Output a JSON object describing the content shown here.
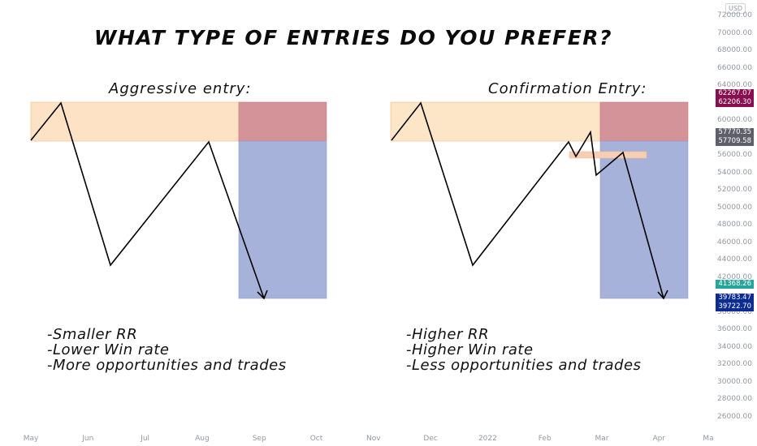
{
  "chart_data": {
    "type": "line",
    "title": "WHAT TYPE OF ENTRIES DO YOU PREFER?",
    "currency": "USD",
    "panels": [
      {
        "subtitle": "Aggressive entry:",
        "notes": [
          "-Smaller RR",
          "-Lower Win rate",
          "-More opportunities and trades"
        ]
      },
      {
        "subtitle": "Confirmation Entry:",
        "notes": [
          "-Higher RR",
          "-Higher Win rate",
          "-Less opportunities and trades"
        ]
      }
    ],
    "y_ticks": [
      "72000.00",
      "70000.00",
      "68000.00",
      "66000.00",
      "64000.00",
      "60000.00",
      "56000.00",
      "54000.00",
      "52000.00",
      "50000.00",
      "48000.00",
      "46000.00",
      "44000.00",
      "42000.00",
      "38000.00",
      "36000.00",
      "34000.00",
      "32000.00",
      "30000.00",
      "28000.00",
      "26000.00"
    ],
    "x_ticks": [
      "May",
      "Jun",
      "Jul",
      "Aug",
      "Sep",
      "Oct",
      "Nov",
      "Dec",
      "2022",
      "Feb",
      "Mar",
      "Apr",
      "Ma"
    ],
    "price_labels": [
      {
        "value": "62267.07",
        "color": "#880e4f"
      },
      {
        "value": "62206.30",
        "color": "#880e4f"
      },
      {
        "value": "57770.35",
        "color": "#5d606b"
      },
      {
        "value": "57709.58",
        "color": "#5d606b"
      },
      {
        "value": "41368.26",
        "color": "#26a69a"
      },
      {
        "value": "39783.47",
        "color": "#0d2c91"
      },
      {
        "value": "39722.70",
        "color": "#0d2c91"
      }
    ],
    "colors": {
      "zone": "#fde4c6",
      "stop": "#d5929a",
      "target": "#a7b3d9",
      "path": "#000000"
    }
  }
}
